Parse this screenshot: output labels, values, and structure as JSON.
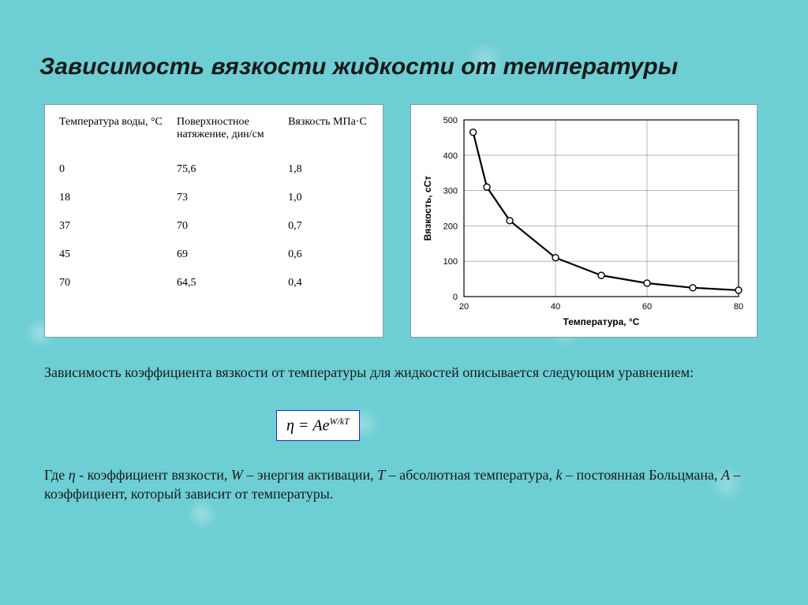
{
  "title": "Зависимость вязкости жидкости от температуры",
  "table": {
    "headers": [
      "Температура воды, °C",
      "Поверхностное натяжение, дин/см",
      "Вязкость МПа·С"
    ],
    "col_widths_pct": [
      38,
      36,
      26
    ],
    "rows": [
      [
        "0",
        "75,6",
        "1,8"
      ],
      [
        "18",
        "73",
        "1,0"
      ],
      [
        "37",
        "70",
        "0,7"
      ],
      [
        "45",
        "69",
        "0,6"
      ],
      [
        "70",
        "64,5",
        "0,4"
      ]
    ],
    "background": "#ffffff",
    "border_color": "#7fa0a0",
    "font_size": 14,
    "text_color": "#000000"
  },
  "chart": {
    "type": "line",
    "xlabel": "Температура, °С",
    "ylabel": "Вязкость, сСт",
    "xlim": [
      20,
      80
    ],
    "ylim": [
      0,
      500
    ],
    "xtick_step": 20,
    "ytick_step": 100,
    "x_points": [
      22,
      25,
      30,
      40,
      50,
      60,
      70,
      80
    ],
    "y_points": [
      465,
      310,
      215,
      110,
      60,
      38,
      25,
      18
    ],
    "line_color": "#000000",
    "line_width": 2.2,
    "marker": "circle-open",
    "marker_size": 4,
    "marker_stroke": "#000000",
    "marker_fill": "#ffffff",
    "grid_color": "#888888",
    "grid_width": 0.6,
    "axis_color": "#000000",
    "axis_width": 1.2,
    "label_fontsize": 12,
    "tick_fontsize": 11,
    "background": "#ffffff"
  },
  "text1": "Зависимость коэффициента вязкости от температуры для жидкостей описывается следующим уравнением:",
  "equation": {
    "html": "η = Ae<sup>W/kT</sup>",
    "border": "#2030c0",
    "bg": "#ffffff"
  },
  "text2_parts": {
    "prefix": "Где ",
    "eta": "η",
    "after_eta": " - коэффициент вязкости, ",
    "W": "W",
    "after_W": " – энергия активации, ",
    "T": "T",
    "after_T": " – абсолютная температура, ",
    "k": "k",
    "after_k": " – постоянная Больцмана, ",
    "A": "A",
    "after_A": " – коэффициент, который зависит от температуры."
  },
  "colors": {
    "page_bg": "#6dced4",
    "text": "#1a1a1a"
  }
}
